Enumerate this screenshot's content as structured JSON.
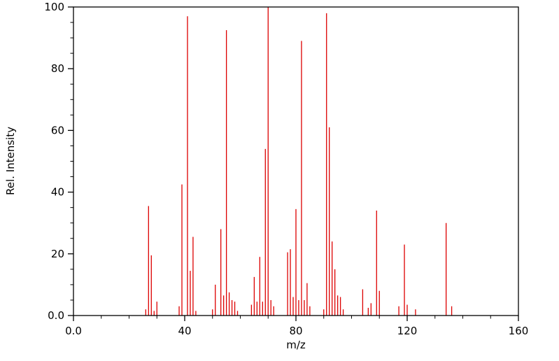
{
  "chart_data": {
    "type": "bar",
    "subtype": "mass-spectrum-stick-plot",
    "title": "",
    "xlabel": "m/z",
    "ylabel": "Rel. Intensity",
    "xlim": [
      0,
      160
    ],
    "ylim": [
      0,
      100
    ],
    "x_major_ticks": [
      0,
      40,
      80,
      120,
      160
    ],
    "x_major_labels": [
      "0.0",
      "40",
      "80",
      "120",
      "160"
    ],
    "x_minor_step": 10,
    "y_major_ticks": [
      0,
      20,
      40,
      60,
      80,
      100
    ],
    "y_major_labels": [
      "0.0",
      "20",
      "40",
      "60",
      "80",
      "100"
    ],
    "y_minor_step": 5,
    "grid": false,
    "legend": "none",
    "stick_color": "#dd0000",
    "axis_color": "#000000",
    "background_color": "#ffffff",
    "peaks_format": [
      "mz",
      "rel_intensity"
    ],
    "peaks": [
      [
        26,
        2
      ],
      [
        27,
        35.5
      ],
      [
        28,
        19.5
      ],
      [
        29,
        1.5
      ],
      [
        30,
        4.5
      ],
      [
        38,
        3
      ],
      [
        39,
        42.5
      ],
      [
        41,
        97
      ],
      [
        42,
        14.5
      ],
      [
        43,
        25.5
      ],
      [
        44,
        1.5
      ],
      [
        50,
        2
      ],
      [
        51,
        10
      ],
      [
        53,
        28
      ],
      [
        54,
        6.5
      ],
      [
        55,
        92.5
      ],
      [
        56,
        7.5
      ],
      [
        57,
        5
      ],
      [
        58,
        4.5
      ],
      [
        59,
        1.5
      ],
      [
        64,
        3.5
      ],
      [
        65,
        12.5
      ],
      [
        66,
        4.5
      ],
      [
        67,
        19
      ],
      [
        68,
        4.5
      ],
      [
        69,
        54
      ],
      [
        70,
        100
      ],
      [
        71,
        5
      ],
      [
        72,
        3
      ],
      [
        77,
        20.5
      ],
      [
        78,
        21.5
      ],
      [
        79,
        6
      ],
      [
        80,
        34.5
      ],
      [
        81,
        5
      ],
      [
        82,
        89
      ],
      [
        83,
        5
      ],
      [
        84,
        10.5
      ],
      [
        85,
        3
      ],
      [
        90,
        2
      ],
      [
        91,
        98
      ],
      [
        92,
        61
      ],
      [
        93,
        24
      ],
      [
        94,
        15
      ],
      [
        95,
        6.5
      ],
      [
        96,
        6
      ],
      [
        97,
        2
      ],
      [
        104,
        8.5
      ],
      [
        106,
        2.5
      ],
      [
        107,
        4
      ],
      [
        109,
        34
      ],
      [
        110,
        8
      ],
      [
        117,
        3
      ],
      [
        119,
        23
      ],
      [
        120,
        3.5
      ],
      [
        123,
        2
      ],
      [
        134,
        30
      ],
      [
        136,
        3
      ]
    ]
  }
}
